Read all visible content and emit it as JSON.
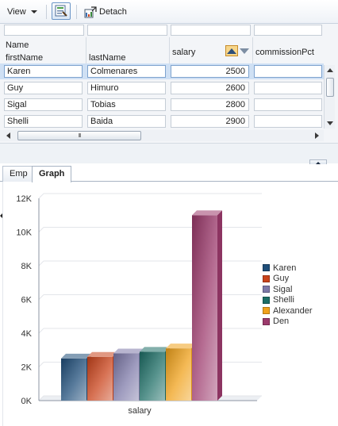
{
  "toolbar": {
    "view_label": "View",
    "detach_label": "Detach",
    "icons": [
      "dropdown-caret",
      "query-by-example-icon",
      "detach-icon"
    ]
  },
  "table": {
    "group_header": "Name",
    "columns": [
      "firstName",
      "lastName",
      "salary",
      "commissionPct"
    ],
    "sorted_column": "salary",
    "rows": [
      {
        "firstName": "Karen",
        "lastName": "Colmenares",
        "salary": "2500",
        "commissionPct": "",
        "selected": true
      },
      {
        "firstName": "Guy",
        "lastName": "Himuro",
        "salary": "2600",
        "commissionPct": ""
      },
      {
        "firstName": "Sigal",
        "lastName": "Tobias",
        "salary": "2800",
        "commissionPct": ""
      },
      {
        "firstName": "Shelli",
        "lastName": "Baida",
        "salary": "2900",
        "commissionPct": ""
      }
    ],
    "hscroll_grip": "III"
  },
  "tabs": [
    {
      "label": "Emp",
      "active": false
    },
    {
      "label": "Graph",
      "active": true
    }
  ],
  "chart_data": {
    "type": "bar",
    "categories": [
      "salary"
    ],
    "series": [
      {
        "name": "Karen",
        "values": [
          2500
        ],
        "color": "#1f4e79"
      },
      {
        "name": "Guy",
        "values": [
          2600
        ],
        "color": "#c9431b"
      },
      {
        "name": "Sigal",
        "values": [
          2800
        ],
        "color": "#7d79a8"
      },
      {
        "name": "Shelli",
        "values": [
          2900
        ],
        "color": "#1d6e66"
      },
      {
        "name": "Alexander",
        "values": [
          3100
        ],
        "color": "#f0a21c"
      },
      {
        "name": "Den",
        "values": [
          11000
        ],
        "color": "#9c3a6c"
      }
    ],
    "yticks": [
      "0K",
      "2K",
      "4K",
      "6K",
      "8K",
      "10K",
      "12K"
    ],
    "ylim": [
      0,
      12000
    ],
    "grid": true,
    "legend_position": "right"
  }
}
